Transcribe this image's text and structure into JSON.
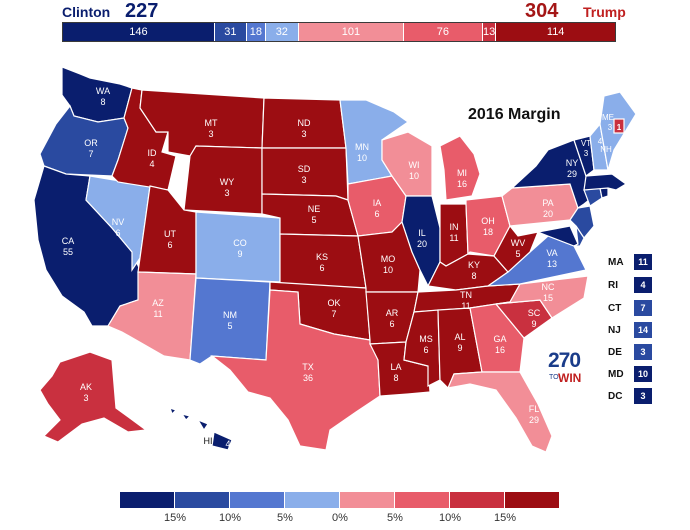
{
  "header": {
    "clinton_name": "Clinton",
    "clinton_total": "227",
    "trump_total": "304",
    "trump_name": "Trump"
  },
  "ev_bar": [
    {
      "label": "146",
      "color": "#0a1e6e",
      "votes": 146
    },
    {
      "label": "31",
      "color": "#2a4aa0",
      "votes": 31
    },
    {
      "label": "18",
      "color": "#5477d0",
      "votes": 18
    },
    {
      "label": "32",
      "color": "#8aaeea",
      "votes": 32
    },
    {
      "label": "101",
      "color": "#f28e97",
      "votes": 101
    },
    {
      "label": "76",
      "color": "#e85c6a",
      "votes": 76
    },
    {
      "label": "13",
      "color": "#c9303f",
      "votes": 13
    },
    {
      "label": "114",
      "color": "#9c0d12",
      "votes": 114
    }
  ],
  "map_title": "2016 Margin",
  "states": {
    "WA": {
      "abbr": "WA",
      "ev": "8"
    },
    "OR": {
      "abbr": "OR",
      "ev": "7"
    },
    "CA": {
      "abbr": "CA",
      "ev": "55"
    },
    "NV": {
      "abbr": "NV",
      "ev": "6"
    },
    "ID": {
      "abbr": "ID",
      "ev": "4"
    },
    "MT": {
      "abbr": "MT",
      "ev": "3"
    },
    "WY": {
      "abbr": "WY",
      "ev": "3"
    },
    "UT": {
      "abbr": "UT",
      "ev": "6"
    },
    "AZ": {
      "abbr": "AZ",
      "ev": "11"
    },
    "CO": {
      "abbr": "CO",
      "ev": "9"
    },
    "NM": {
      "abbr": "NM",
      "ev": "5"
    },
    "ND": {
      "abbr": "ND",
      "ev": "3"
    },
    "SD": {
      "abbr": "SD",
      "ev": "3"
    },
    "NE": {
      "abbr": "NE",
      "ev": "5"
    },
    "KS": {
      "abbr": "KS",
      "ev": "6"
    },
    "OK": {
      "abbr": "OK",
      "ev": "7"
    },
    "TX": {
      "abbr": "TX",
      "ev": "36"
    },
    "MN": {
      "abbr": "MN",
      "ev": "10"
    },
    "IA": {
      "abbr": "IA",
      "ev": "6"
    },
    "MO": {
      "abbr": "MO",
      "ev": "10"
    },
    "AR": {
      "abbr": "AR",
      "ev": "6"
    },
    "LA": {
      "abbr": "LA",
      "ev": "8"
    },
    "WI": {
      "abbr": "WI",
      "ev": "10"
    },
    "IL": {
      "abbr": "IL",
      "ev": "20"
    },
    "MI": {
      "abbr": "MI",
      "ev": "16"
    },
    "IN": {
      "abbr": "IN",
      "ev": "11"
    },
    "OH": {
      "abbr": "OH",
      "ev": "18"
    },
    "KY": {
      "abbr": "KY",
      "ev": "8"
    },
    "TN": {
      "abbr": "TN",
      "ev": "11"
    },
    "MS": {
      "abbr": "MS",
      "ev": "6"
    },
    "AL": {
      "abbr": "AL",
      "ev": "9"
    },
    "GA": {
      "abbr": "GA",
      "ev": "16"
    },
    "FL": {
      "abbr": "FL",
      "ev": "29"
    },
    "SC": {
      "abbr": "SC",
      "ev": "9"
    },
    "NC": {
      "abbr": "NC",
      "ev": "15"
    },
    "VA": {
      "abbr": "VA",
      "ev": "13"
    },
    "WV": {
      "abbr": "WV",
      "ev": "5"
    },
    "PA": {
      "abbr": "PA",
      "ev": "20"
    },
    "NY": {
      "abbr": "NY",
      "ev": "29"
    },
    "VT": {
      "abbr": "VT",
      "ev": "3"
    },
    "NH": {
      "abbr": "NH",
      "ev": "4"
    },
    "ME": {
      "abbr": "ME",
      "ev": "3",
      "ev2": "1"
    },
    "AK": {
      "abbr": "AK",
      "ev": "3"
    },
    "HI": {
      "abbr": "HI",
      "ev": "4"
    }
  },
  "small_states": [
    {
      "abbr": "MA",
      "ev": "11",
      "color": "#0a1e6e"
    },
    {
      "abbr": "RI",
      "ev": "4",
      "color": "#0a1e6e"
    },
    {
      "abbr": "CT",
      "ev": "7",
      "color": "#2a4aa0"
    },
    {
      "abbr": "NJ",
      "ev": "14",
      "color": "#2a4aa0"
    },
    {
      "abbr": "DE",
      "ev": "3",
      "color": "#2a4aa0"
    },
    {
      "abbr": "MD",
      "ev": "10",
      "color": "#0a1e6e"
    },
    {
      "abbr": "DC",
      "ev": "3",
      "color": "#0a1e6e"
    }
  ],
  "logo": {
    "num": "270",
    "to": "TO",
    "win": "WIN"
  },
  "legend": {
    "colors": [
      "#0a1e6e",
      "#2a4aa0",
      "#5477d0",
      "#8aaeea",
      "#f28e97",
      "#e85c6a",
      "#c9303f",
      "#9c0d12"
    ],
    "ticks": [
      "15%",
      "10%",
      "5%",
      "0%",
      "5%",
      "10%",
      "15%"
    ]
  }
}
